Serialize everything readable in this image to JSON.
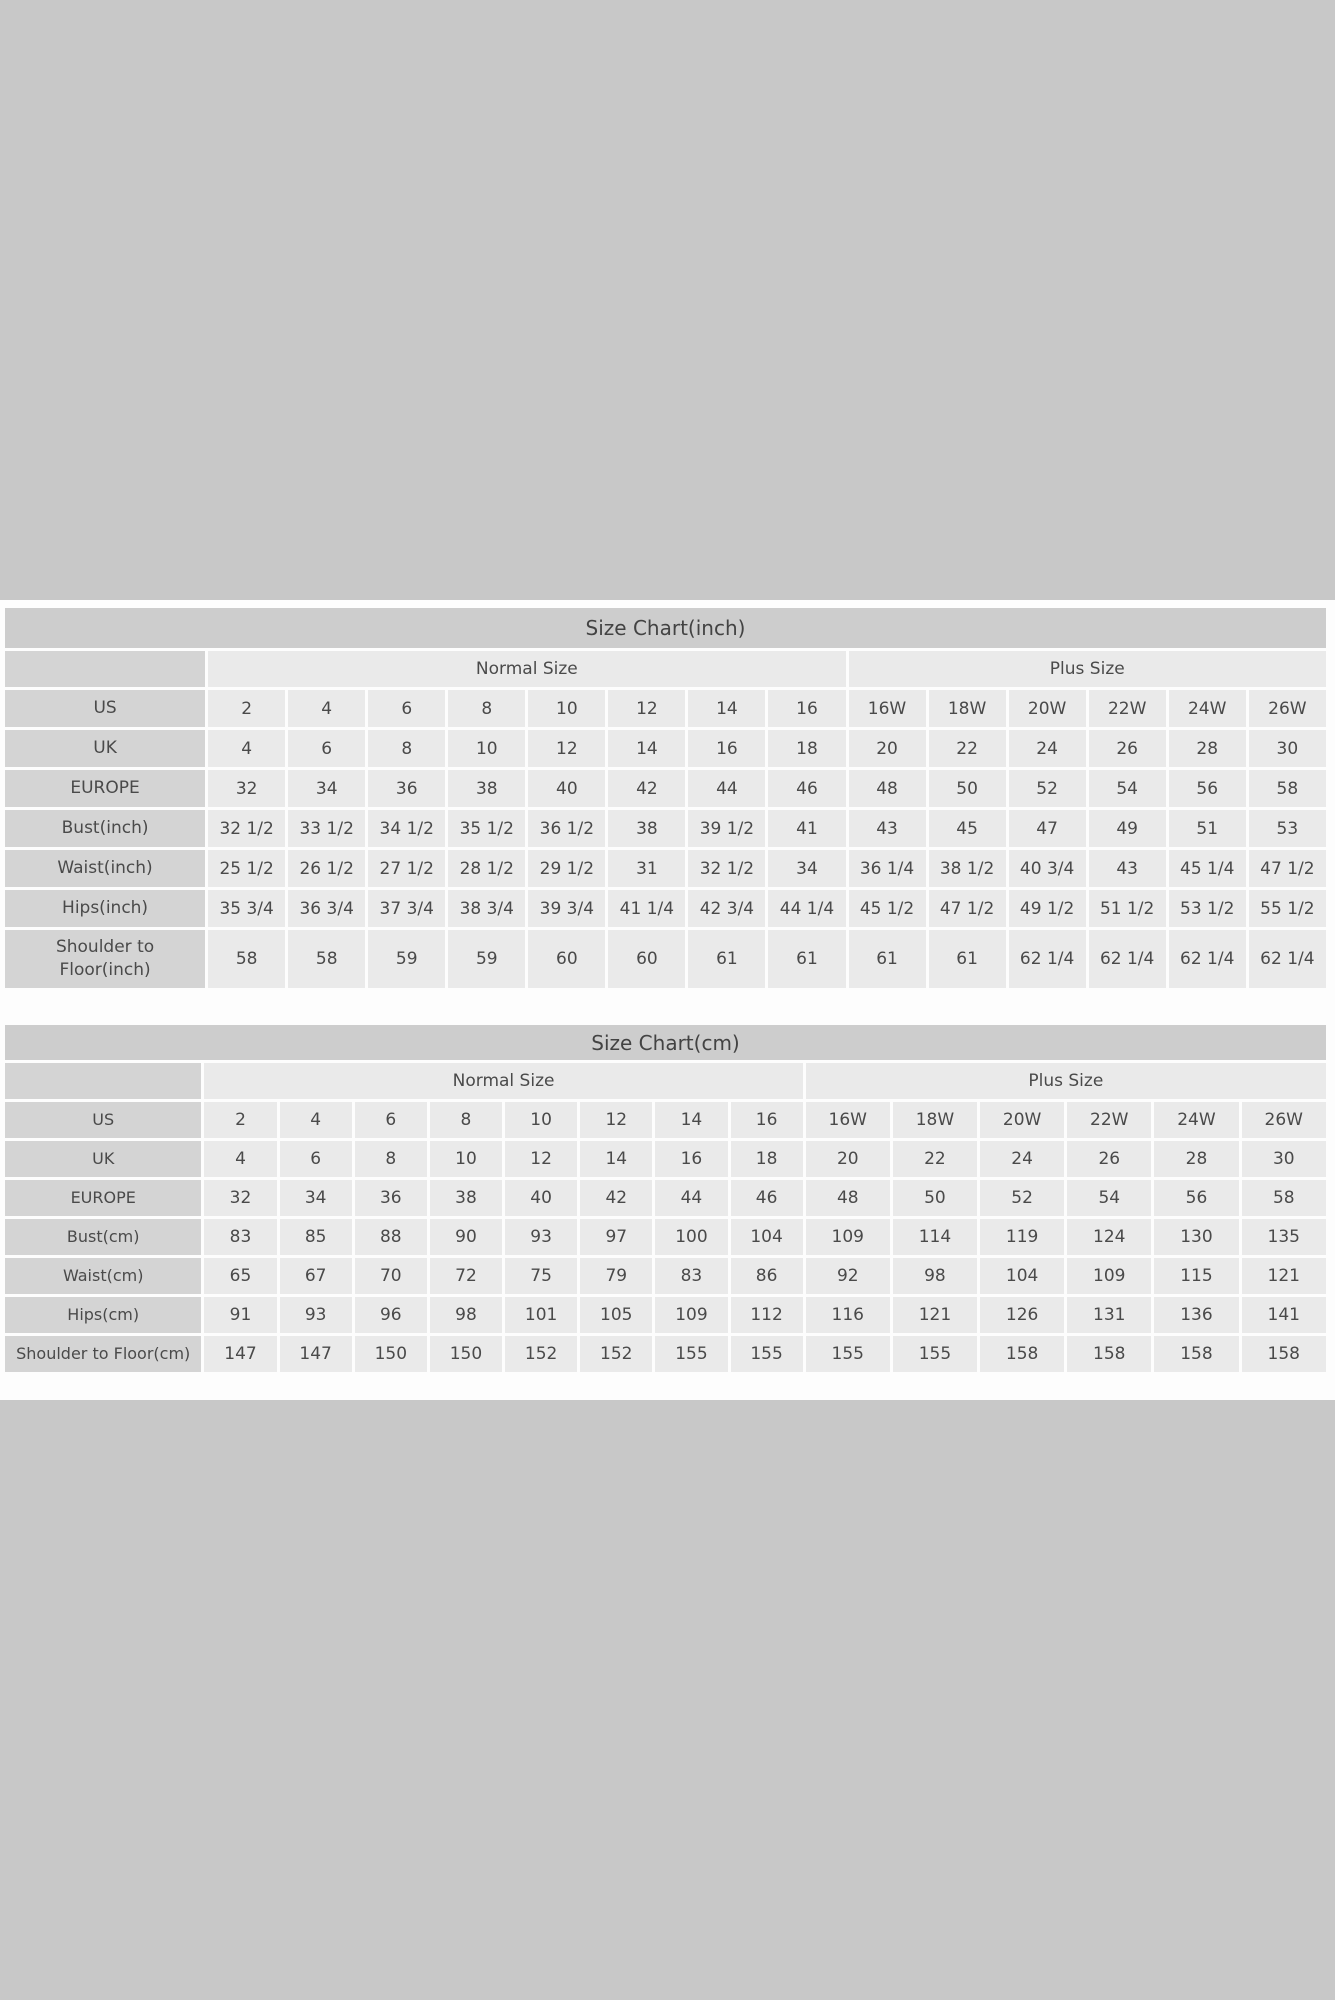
{
  "colors": {
    "page_background": "#c8c8c8",
    "panel": "#fdfdfd",
    "title_row": "#cdcdcd",
    "label_cell": "#d4d4d4",
    "data_cell": "#eaeaea",
    "text": "#4a4a4a"
  },
  "tables": [
    {
      "title": "Size Chart(inch)",
      "column_groups": [
        {
          "label": "Normal Size",
          "span": 8
        },
        {
          "label": "Plus Size",
          "span": 6
        }
      ],
      "rows": [
        {
          "label": "US",
          "values": [
            "2",
            "4",
            "6",
            "8",
            "10",
            "12",
            "14",
            "16",
            "16W",
            "18W",
            "20W",
            "22W",
            "24W",
            "26W"
          ]
        },
        {
          "label": "UK",
          "values": [
            "4",
            "6",
            "8",
            "10",
            "12",
            "14",
            "16",
            "18",
            "20",
            "22",
            "24",
            "26",
            "28",
            "30"
          ]
        },
        {
          "label": "EUROPE",
          "values": [
            "32",
            "34",
            "36",
            "38",
            "40",
            "42",
            "44",
            "46",
            "48",
            "50",
            "52",
            "54",
            "56",
            "58"
          ]
        },
        {
          "label": "Bust(inch)",
          "values": [
            "32 1/2",
            "33 1/2",
            "34 1/2",
            "35 1/2",
            "36 1/2",
            "38",
            "39 1/2",
            "41",
            "43",
            "45",
            "47",
            "49",
            "51",
            "53"
          ]
        },
        {
          "label": "Waist(inch)",
          "values": [
            "25 1/2",
            "26 1/2",
            "27 1/2",
            "28 1/2",
            "29 1/2",
            "31",
            "32 1/2",
            "34",
            "36 1/4",
            "38 1/2",
            "40 3/4",
            "43",
            "45 1/4",
            "47 1/2"
          ]
        },
        {
          "label": "Hips(inch)",
          "values": [
            "35 3/4",
            "36 3/4",
            "37 3/4",
            "38 3/4",
            "39 3/4",
            "41 1/4",
            "42 3/4",
            "44 1/4",
            "45 1/2",
            "47 1/2",
            "49 1/2",
            "51 1/2",
            "53 1/2",
            "55 1/2"
          ]
        },
        {
          "label": "Shoulder to\nFloor(inch)",
          "values": [
            "58",
            "58",
            "59",
            "59",
            "60",
            "60",
            "61",
            "61",
            "61",
            "61",
            "62 1/4",
            "62 1/4",
            "62 1/4",
            "62 1/4"
          ]
        }
      ]
    },
    {
      "title": "Size Chart(cm)",
      "column_groups": [
        {
          "label": "Normal Size",
          "span": 8
        },
        {
          "label": "Plus Size",
          "span": 6
        }
      ],
      "rows": [
        {
          "label": "US",
          "values": [
            "2",
            "4",
            "6",
            "8",
            "10",
            "12",
            "14",
            "16",
            "16W",
            "18W",
            "20W",
            "22W",
            "24W",
            "26W"
          ]
        },
        {
          "label": "UK",
          "values": [
            "4",
            "6",
            "8",
            "10",
            "12",
            "14",
            "16",
            "18",
            "20",
            "22",
            "24",
            "26",
            "28",
            "30"
          ]
        },
        {
          "label": "EUROPE",
          "values": [
            "32",
            "34",
            "36",
            "38",
            "40",
            "42",
            "44",
            "46",
            "48",
            "50",
            "52",
            "54",
            "56",
            "58"
          ]
        },
        {
          "label": "Bust(cm)",
          "values": [
            "83",
            "85",
            "88",
            "90",
            "93",
            "97",
            "100",
            "104",
            "109",
            "114",
            "119",
            "124",
            "130",
            "135"
          ]
        },
        {
          "label": "Waist(cm)",
          "values": [
            "65",
            "67",
            "70",
            "72",
            "75",
            "79",
            "83",
            "86",
            "92",
            "98",
            "104",
            "109",
            "115",
            "121"
          ]
        },
        {
          "label": "Hips(cm)",
          "values": [
            "91",
            "93",
            "96",
            "98",
            "101",
            "105",
            "109",
            "112",
            "116",
            "121",
            "126",
            "131",
            "136",
            "141"
          ]
        },
        {
          "label": "Shoulder to Floor(cm)",
          "values": [
            "147",
            "147",
            "150",
            "150",
            "152",
            "152",
            "155",
            "155",
            "155",
            "155",
            "158",
            "158",
            "158",
            "158"
          ]
        }
      ]
    }
  ]
}
